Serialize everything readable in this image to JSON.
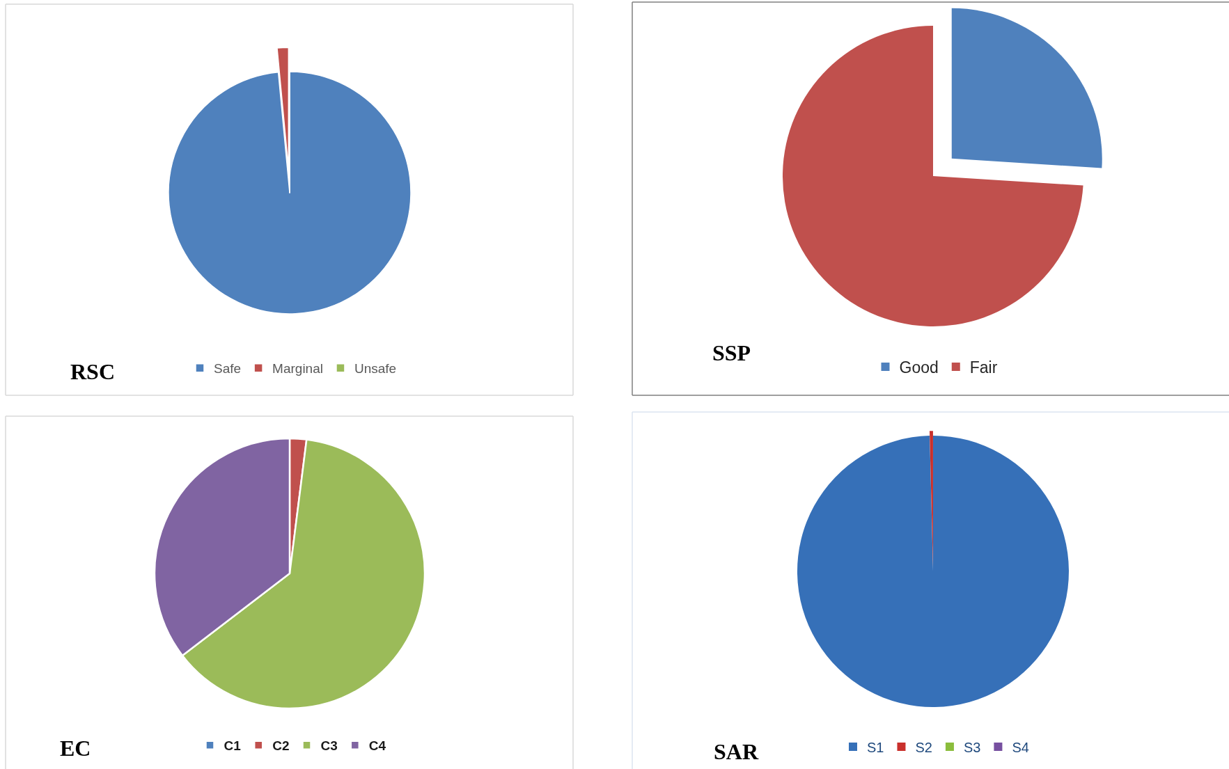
{
  "chart_data": [
    {
      "type": "pie",
      "title": "RSC",
      "categories": [
        "Safe",
        "Marginal",
        "Unsafe"
      ],
      "values": [
        98.5,
        1.5,
        0
      ],
      "colors": [
        "#4f81bd",
        "#c0504d",
        "#9bbb59"
      ],
      "legend": "bottom"
    },
    {
      "type": "pie",
      "title": "SSP",
      "categories": [
        "Good",
        "Fair"
      ],
      "values": [
        26,
        74
      ],
      "colors": [
        "#4f81bd",
        "#c0504d"
      ],
      "legend": "bottom"
    },
    {
      "type": "pie",
      "title": "EC",
      "categories": [
        "C1",
        "C2",
        "C3",
        "C4"
      ],
      "values": [
        0,
        2,
        62.6,
        35.4
      ],
      "colors": [
        "#4f81bd",
        "#c0504d",
        "#9bbb59",
        "#8064a2"
      ],
      "legend": "bottom"
    },
    {
      "type": "pie",
      "title": "SAR",
      "categories": [
        "S1",
        "S2",
        "S3",
        "S4"
      ],
      "values": [
        99.6,
        0.4,
        0,
        0
      ],
      "colors": [
        "#3670b8",
        "#c9302c",
        "#8bbd3c",
        "#7750a0"
      ],
      "legend": "bottom"
    }
  ]
}
